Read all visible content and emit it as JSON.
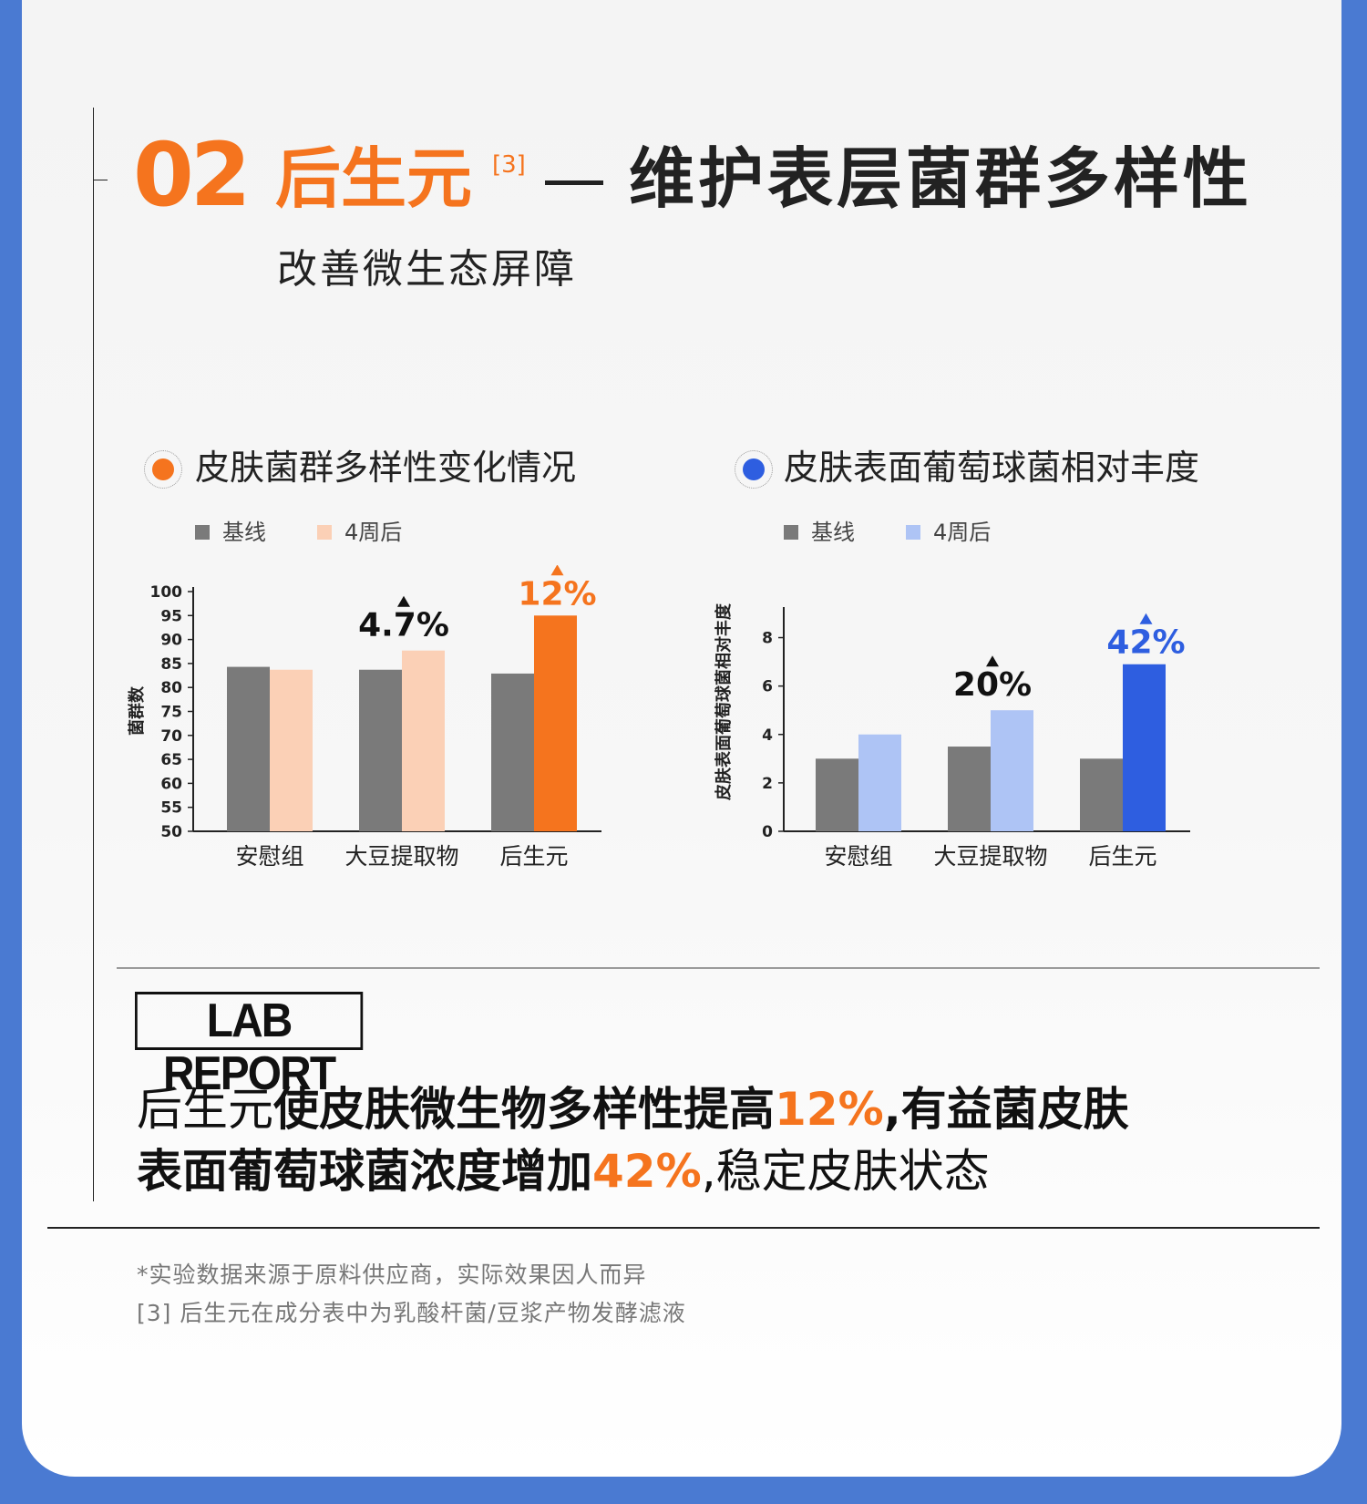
{
  "header": {
    "number": "02",
    "name": "后生元",
    "ref": "[3]",
    "headline": "维护表层菌群多样性",
    "subtitle": "改善微生态屏障"
  },
  "colors": {
    "orange": "#f5741e",
    "peach": "#fbd0b6",
    "gray": "#7a7a7a",
    "light_blue": "#aec4f5",
    "blue": "#2e5ee0",
    "text": "#222222"
  },
  "chart_data": [
    {
      "type": "bar",
      "title": "皮肤菌群多样性变化情况",
      "categories": [
        "安慰组",
        "大豆提取物",
        "后生元"
      ],
      "series": [
        {
          "name": "基线",
          "values": [
            84.3,
            83.7,
            82.9
          ]
        },
        {
          "name": "4周后",
          "values": [
            83.7,
            87.7,
            95
          ]
        }
      ],
      "ylabel": "菌群数",
      "xlabel": "",
      "ylim": [
        50,
        100
      ],
      "yticks": [
        50,
        55,
        60,
        65,
        70,
        75,
        80,
        85,
        90,
        95,
        100
      ],
      "annotations": [
        {
          "category": "大豆提取物",
          "text": "4.7%"
        },
        {
          "category": "后生元",
          "text": "12%"
        }
      ],
      "legend_position": "top-left",
      "grid": false
    },
    {
      "type": "bar",
      "title": "皮肤表面葡萄球菌相对丰度",
      "categories": [
        "安慰组",
        "大豆提取物",
        "后生元"
      ],
      "series": [
        {
          "name": "基线",
          "values": [
            3.0,
            3.5,
            3.0
          ]
        },
        {
          "name": "4周后",
          "values": [
            4.0,
            5.0,
            6.9
          ]
        }
      ],
      "ylabel": "皮肤表面葡萄球菌相对丰度",
      "xlabel": "",
      "ylim": [
        0,
        9.3
      ],
      "yticks": [
        0,
        2,
        4,
        6,
        8
      ],
      "annotations": [
        {
          "category": "大豆提取物",
          "text": "20%"
        },
        {
          "category": "后生元",
          "text": "42%"
        }
      ],
      "legend_position": "top-left",
      "grid": false
    }
  ],
  "report": {
    "badge": "LAB REPORT",
    "line1": [
      {
        "text": "后生元",
        "style": "n"
      },
      {
        "text": "使皮肤微生物多样性提高",
        "style": "b"
      },
      {
        "text": "12%",
        "style": "hl"
      },
      {
        "text": ",有益菌皮肤",
        "style": "b"
      }
    ],
    "line2": [
      {
        "text": "表面葡萄球菌浓度增加",
        "style": "b"
      },
      {
        "text": "42%",
        "style": "hl"
      },
      {
        "text": ",稳定皮肤状态",
        "style": "n"
      }
    ]
  },
  "notes": {
    "note1": "*实验数据来源于原料供应商，实际效果因人而异",
    "note2": "[3] 后生元在成分表中为乳酸杆菌/豆浆产物发酵滤液"
  }
}
